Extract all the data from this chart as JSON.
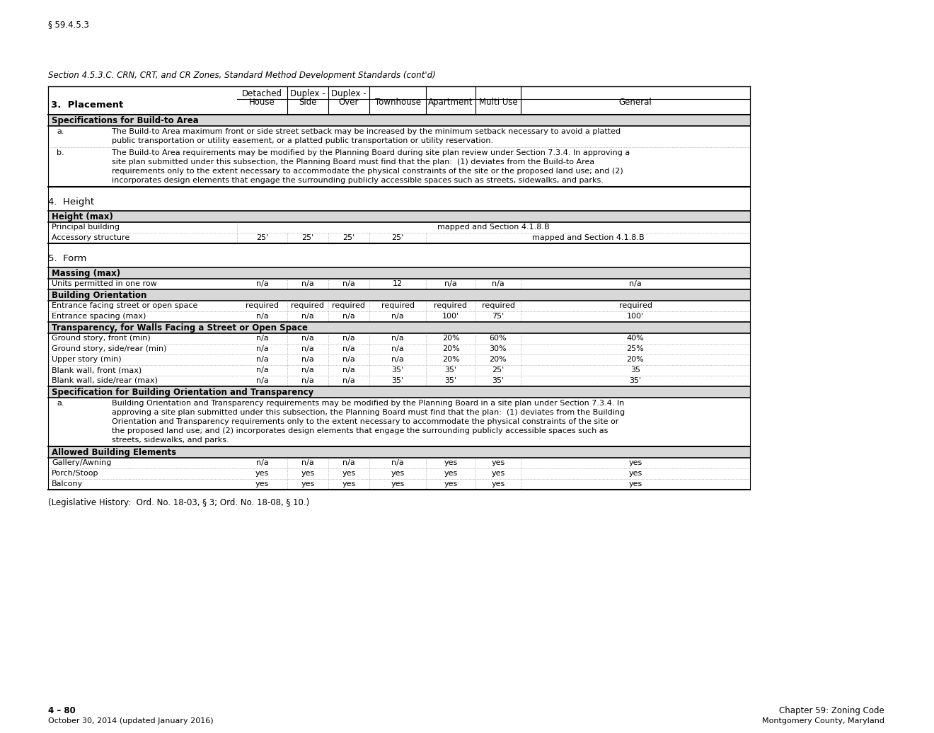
{
  "page_ref": "§ 59.4.5.3",
  "section_title": "Section 4.5.3.C. CRN, CRT, and CR Zones, Standard Method Development Standards (cont'd)",
  "footer_left_1": "4 – 80",
  "footer_left_2": "October 30, 2014 (updated January 2016)",
  "footer_right_1": "Chapter 59: Zoning Code",
  "footer_right_2": "Montgomery County, Maryland",
  "bg_light": "#d8d8d8",
  "bg_white": "#ffffff",
  "note_a_bta": "The Build-to Area maximum front or side street setback may be increased by the minimum setback necessary to avoid a platted\npublic transportation or utility easement, or a platted public transportation or utility reservation.",
  "note_b_bta": "The Build-to Area requirements may be modified by the Planning Board during site plan review under Section 7.3.4. In approving a\nsite plan submitted under this subsection, the Planning Board must find that the plan:  (1) deviates from the Build-to Area\nrequirements only to the extent necessary to accommodate the physical constraints of the site or the proposed land use; and (2)\nincorporates design elements that engage the surrounding publicly accessible spaces such as streets, sidewalks, and parks.",
  "note_a_orient": "Building Orientation and Transparency requirements may be modified by the Planning Board in a site plan under Section 7.3.4. In\napproving a site plan submitted under this subsection, the Planning Board must find that the plan:  (1) deviates from the Building\nOrientation and Transparency requirements only to the extent necessary to accommodate the physical constraints of the site or\nthe proposed land use; and (2) incorporates design elements that engage the surrounding publicly accessible spaces such as\nstreets, sidewalks, and parks.",
  "legislative_note": "(Legislative History:  Ord. No. 18-03, § 3; Ord. No. 18-08, § 10.)"
}
